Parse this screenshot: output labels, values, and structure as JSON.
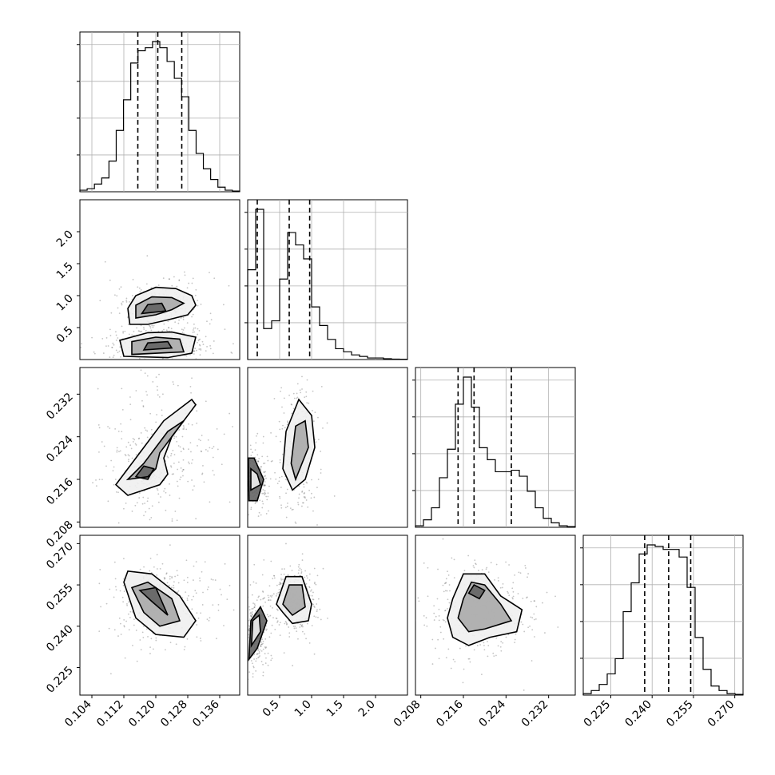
{
  "chart_data": {
    "type": "corner",
    "parameters": [
      "p0",
      "p1",
      "p2",
      "p3"
    ],
    "ranges": {
      "p0": [
        0.101,
        0.141
      ],
      "p1": [
        0.0,
        2.5
      ],
      "p2": [
        0.207,
        0.237
      ],
      "p3": [
        0.215,
        0.273
      ]
    },
    "ticks": {
      "p0": {
        "values": [
          0.104,
          0.112,
          0.12,
          0.128,
          0.136
        ],
        "labels": [
          "0.104",
          "0.112",
          "0.120",
          "0.128",
          "0.136"
        ]
      },
      "p1": {
        "values": [
          0.5,
          1.0,
          1.5,
          2.0
        ],
        "labels": [
          "0.5",
          "1.0",
          "1.5",
          "2.0"
        ]
      },
      "p2": {
        "values": [
          0.208,
          0.216,
          0.224,
          0.232
        ],
        "labels": [
          "0.208",
          "0.216",
          "0.224",
          "0.232"
        ]
      },
      "p3": {
        "values": [
          0.225,
          0.24,
          0.255,
          0.27
        ],
        "labels": [
          "0.225",
          "0.240",
          "0.255",
          "0.270"
        ]
      }
    },
    "quantiles": {
      "p0": [
        0.1155,
        0.1205,
        0.1265
      ],
      "p1": [
        0.15,
        0.65,
        0.97
      ],
      "p2": [
        0.215,
        0.218,
        0.225
      ],
      "p3": [
        0.2373,
        0.246,
        0.254
      ]
    },
    "histograms": {
      "p0": {
        "edges": [
          0.101,
          0.141
        ],
        "counts": [
          1,
          2,
          5,
          9,
          20,
          40,
          60,
          84,
          92,
          94,
          98,
          94,
          85,
          74,
          62,
          40,
          25,
          15,
          8,
          3,
          1,
          0.5
        ]
      },
      "p1": {
        "edges": [
          0.0,
          2.5
        ],
        "counts": [
          58,
          97,
          20,
          25,
          52,
          82,
          74,
          65,
          34,
          22,
          13,
          7,
          5,
          3,
          2,
          1,
          1,
          0.5,
          0.3,
          0.2
        ]
      },
      "p2": {
        "edges": [
          0.207,
          0.237
        ],
        "counts": [
          1,
          5,
          13,
          33,
          52,
          82,
          100,
          80,
          53,
          45,
          37,
          37,
          38,
          34,
          24,
          13,
          6,
          3,
          1,
          0.5
        ]
      },
      "p3": {
        "edges": [
          0.215,
          0.273
        ],
        "counts": [
          1,
          3,
          7,
          14,
          24,
          55,
          74,
          93,
          99,
          98,
          96,
          96,
          91,
          71,
          38,
          17,
          6,
          3,
          1,
          0.5
        ]
      }
    },
    "pairs": [
      {
        "x": "p0",
        "y": "p1",
        "rows": 1,
        "cols": 0,
        "contours": [
          [
            [
              0.1135,
              0.55
            ],
            [
              0.113,
              0.8
            ],
            [
              0.115,
              1.0
            ],
            [
              0.12,
              1.13
            ],
            [
              0.125,
              1.11
            ],
            [
              0.129,
              1.0
            ],
            [
              0.13,
              0.85
            ],
            [
              0.128,
              0.7
            ],
            [
              0.123,
              0.62
            ],
            [
              0.118,
              0.55
            ]
          ],
          [
            [
              0.115,
              0.65
            ],
            [
              0.115,
              0.85
            ],
            [
              0.119,
              0.98
            ],
            [
              0.124,
              0.97
            ],
            [
              0.127,
              0.88
            ],
            [
              0.124,
              0.78
            ],
            [
              0.12,
              0.7
            ]
          ],
          [
            [
              0.1165,
              0.72
            ],
            [
              0.118,
              0.86
            ],
            [
              0.1215,
              0.88
            ],
            [
              0.1225,
              0.76
            ]
          ],
          [
            [
              0.112,
              0.05
            ],
            [
              0.111,
              0.3
            ],
            [
              0.118,
              0.42
            ],
            [
              0.124,
              0.43
            ],
            [
              0.13,
              0.35
            ],
            [
              0.129,
              0.1
            ],
            [
              0.123,
              0.03
            ]
          ],
          [
            [
              0.114,
              0.08
            ],
            [
              0.114,
              0.28
            ],
            [
              0.12,
              0.35
            ],
            [
              0.126,
              0.32
            ],
            [
              0.127,
              0.12
            ]
          ],
          [
            [
              0.117,
              0.15
            ],
            [
              0.118,
              0.26
            ],
            [
              0.123,
              0.28
            ],
            [
              0.124,
              0.18
            ]
          ]
        ]
      },
      {
        "x": "p0",
        "y": "p2",
        "rows": 2,
        "cols": 0,
        "contours": [
          [
            [
              0.11,
              0.215
            ],
            [
              0.115,
              0.22
            ],
            [
              0.122,
              0.227
            ],
            [
              0.129,
              0.231
            ],
            [
              0.13,
              0.23
            ],
            [
              0.124,
              0.224
            ],
            [
              0.122,
              0.22
            ],
            [
              0.123,
              0.217
            ],
            [
              0.121,
              0.215
            ],
            [
              0.117,
              0.214
            ],
            [
              0.113,
              0.213
            ]
          ],
          [
            [
              0.113,
              0.216
            ],
            [
              0.117,
              0.219
            ],
            [
              0.123,
              0.225
            ],
            [
              0.127,
              0.227
            ],
            [
              0.121,
              0.221
            ],
            [
              0.12,
              0.218
            ],
            [
              0.118,
              0.2165
            ]
          ],
          [
            [
              0.115,
              0.2165
            ],
            [
              0.117,
              0.2185
            ],
            [
              0.1195,
              0.218
            ],
            [
              0.118,
              0.216
            ]
          ]
        ]
      },
      {
        "x": "p1",
        "y": "p2",
        "rows": 2,
        "cols": 1,
        "contours": [
          [
            [
              0.7,
              0.214
            ],
            [
              0.55,
              0.218
            ],
            [
              0.6,
              0.225
            ],
            [
              0.8,
              0.231
            ],
            [
              1.0,
              0.228
            ],
            [
              1.05,
              0.222
            ],
            [
              0.9,
              0.216
            ]
          ],
          [
            [
              0.75,
              0.216
            ],
            [
              0.68,
              0.219
            ],
            [
              0.75,
              0.226
            ],
            [
              0.9,
              0.227
            ],
            [
              0.95,
              0.222
            ]
          ],
          [
            [
              0.02,
              0.212
            ],
            [
              0.01,
              0.22
            ],
            [
              0.1,
              0.22
            ],
            [
              0.25,
              0.216
            ],
            [
              0.15,
              0.212
            ]
          ],
          [
            [
              0.05,
              0.214
            ],
            [
              0.05,
              0.218
            ],
            [
              0.15,
              0.217
            ],
            [
              0.2,
              0.215
            ]
          ]
        ]
      },
      {
        "x": "p0",
        "y": "p3",
        "rows": 3,
        "cols": 0,
        "contours": [
          [
            [
              0.112,
              0.256
            ],
            [
              0.115,
              0.243
            ],
            [
              0.12,
              0.237
            ],
            [
              0.127,
              0.236
            ],
            [
              0.13,
              0.242
            ],
            [
              0.126,
              0.251
            ],
            [
              0.119,
              0.259
            ],
            [
              0.113,
              0.26
            ]
          ],
          [
            [
              0.114,
              0.254
            ],
            [
              0.117,
              0.245
            ],
            [
              0.121,
              0.24
            ],
            [
              0.126,
              0.242
            ],
            [
              0.124,
              0.25
            ],
            [
              0.118,
              0.256
            ]
          ],
          [
            [
              0.116,
              0.253
            ],
            [
              0.119,
              0.249
            ],
            [
              0.123,
              0.244
            ],
            [
              0.12,
              0.254
            ]
          ]
        ]
      },
      {
        "x": "p1",
        "y": "p3",
        "rows": 3,
        "cols": 1,
        "contours": [
          [
            [
              0.45,
              0.248
            ],
            [
              0.6,
              0.258
            ],
            [
              0.85,
              0.258
            ],
            [
              1.0,
              0.248
            ],
            [
              0.95,
              0.242
            ],
            [
              0.7,
              0.241
            ],
            [
              0.55,
              0.245
            ]
          ],
          [
            [
              0.55,
              0.248
            ],
            [
              0.65,
              0.255
            ],
            [
              0.85,
              0.255
            ],
            [
              0.9,
              0.247
            ],
            [
              0.7,
              0.244
            ]
          ],
          [
            [
              0.02,
              0.228
            ],
            [
              0.05,
              0.242
            ],
            [
              0.2,
              0.247
            ],
            [
              0.3,
              0.242
            ],
            [
              0.15,
              0.232
            ]
          ],
          [
            [
              0.06,
              0.233
            ],
            [
              0.08,
              0.242
            ],
            [
              0.18,
              0.244
            ],
            [
              0.2,
              0.238
            ]
          ]
        ]
      },
      {
        "x": "p2",
        "y": "p3",
        "rows": 3,
        "cols": 2,
        "contours": [
          [
            [
              0.214,
              0.25
            ],
            [
              0.216,
              0.259
            ],
            [
              0.22,
              0.259
            ],
            [
              0.223,
              0.251
            ],
            [
              0.227,
              0.246
            ],
            [
              0.226,
              0.238
            ],
            [
              0.221,
              0.236
            ],
            [
              0.217,
              0.233
            ],
            [
              0.214,
              0.236
            ],
            [
              0.213,
              0.243
            ]
          ],
          [
            [
              0.216,
              0.25
            ],
            [
              0.2175,
              0.256
            ],
            [
              0.22,
              0.255
            ],
            [
              0.223,
              0.248
            ],
            [
              0.225,
              0.242
            ],
            [
              0.22,
              0.239
            ],
            [
              0.217,
              0.238
            ],
            [
              0.215,
              0.243
            ]
          ],
          [
            [
              0.217,
              0.252
            ],
            [
              0.218,
              0.255
            ],
            [
              0.22,
              0.253
            ],
            [
              0.219,
              0.25
            ]
          ]
        ]
      }
    ]
  }
}
